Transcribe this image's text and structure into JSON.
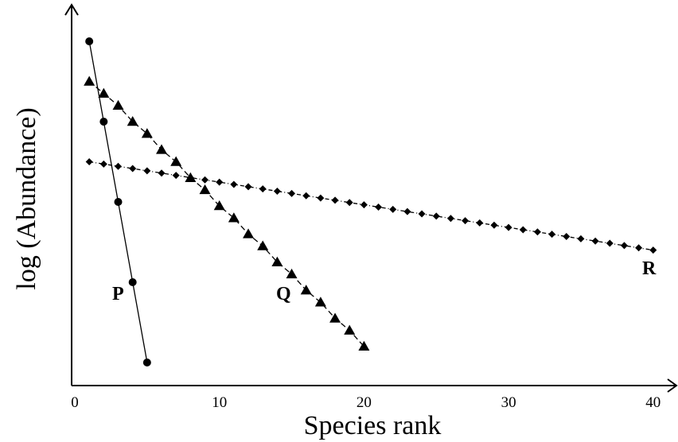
{
  "chart_data": {
    "type": "line",
    "xlabel": "Species rank",
    "ylabel": "log (Abundance)",
    "xlim": [
      0,
      42
    ],
    "ylim": [
      0,
      1
    ],
    "x_ticks": [
      0,
      10,
      20,
      30,
      40
    ],
    "y_ticks_shown": false,
    "grid": false,
    "series": [
      {
        "name": "P",
        "marker": "circle",
        "line_style": "solid",
        "x": [
          1,
          2,
          3,
          4,
          5
        ],
        "y": [
          0.9,
          0.7,
          0.5,
          0.3,
          0.1
        ]
      },
      {
        "name": "Q",
        "marker": "triangle",
        "line_style": "dashed",
        "x": [
          1,
          2,
          3,
          4,
          5,
          6,
          7,
          8,
          9,
          10,
          11,
          12,
          13,
          14,
          15,
          16,
          17,
          18,
          19,
          20
        ],
        "y": [
          0.8,
          0.77,
          0.74,
          0.7,
          0.67,
          0.63,
          0.6,
          0.56,
          0.53,
          0.49,
          0.46,
          0.42,
          0.39,
          0.35,
          0.32,
          0.28,
          0.25,
          0.21,
          0.18,
          0.14
        ]
      },
      {
        "name": "R",
        "marker": "diamond",
        "line_style": "dash-dot",
        "x_start": 1,
        "x_end": 40,
        "y_start": 0.6,
        "y_end": 0.38,
        "points": 40
      }
    ]
  }
}
